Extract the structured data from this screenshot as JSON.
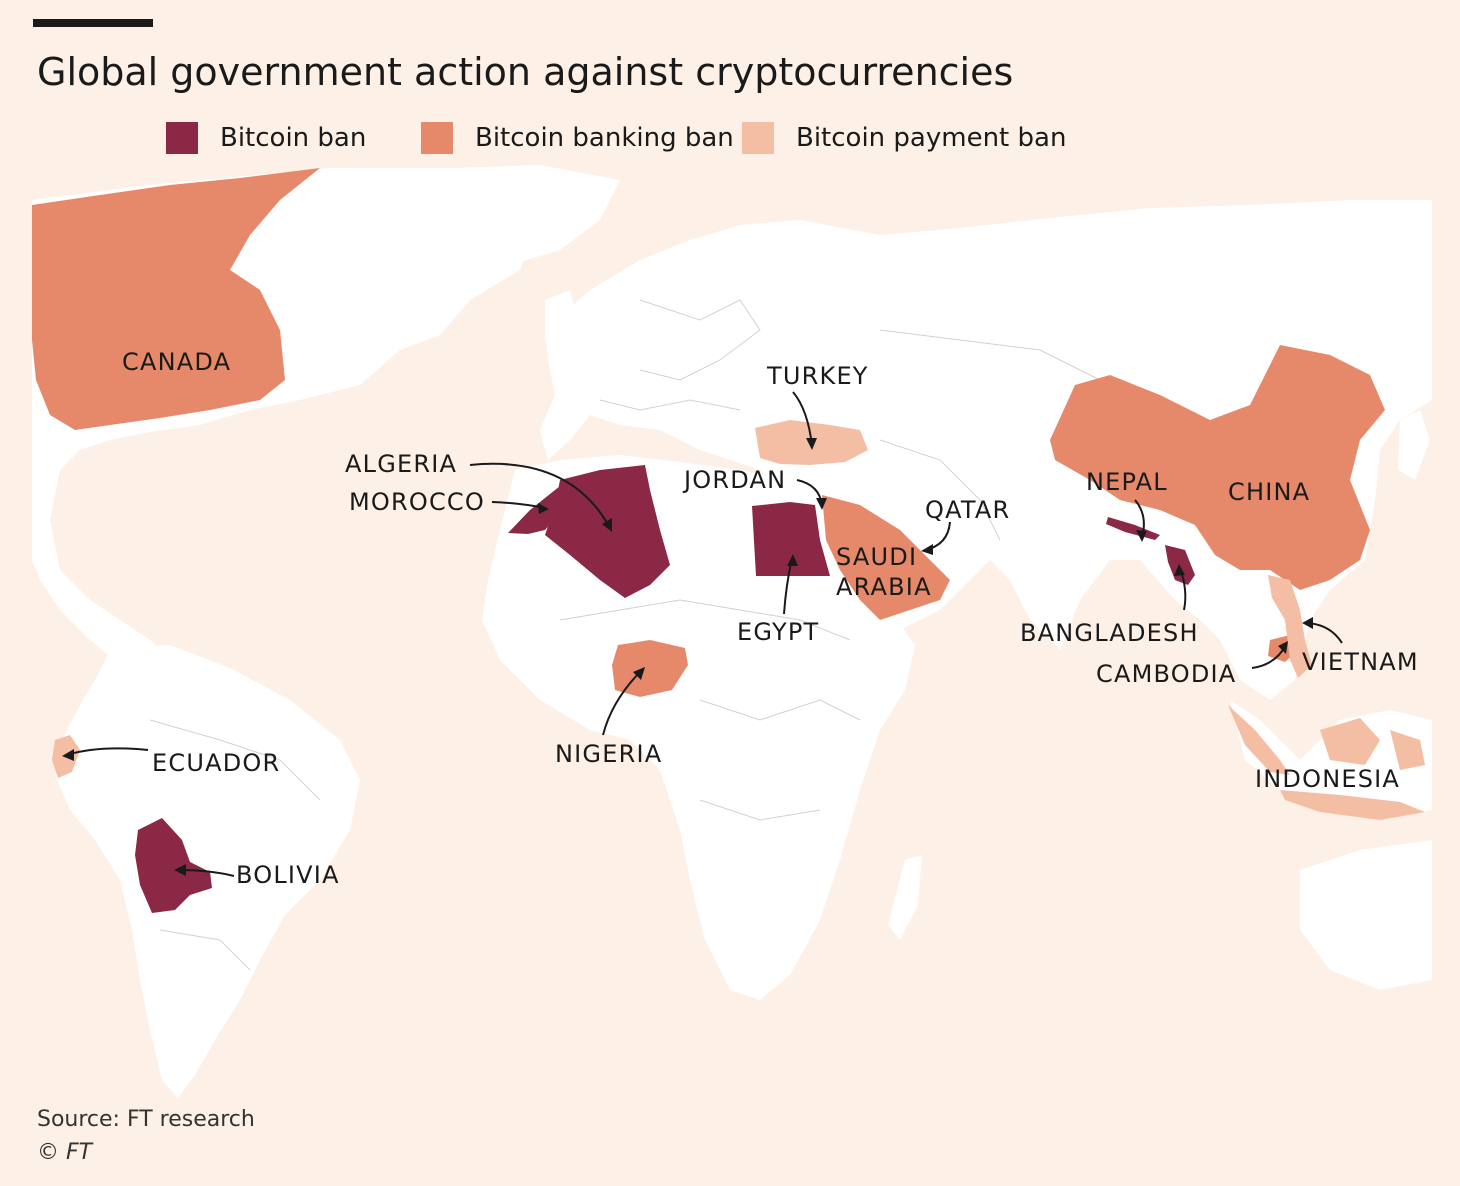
{
  "title": "Global government action against cryptocurrencies",
  "legend": [
    {
      "label": "Bitcoin ban",
      "color": "#8b2846"
    },
    {
      "label": "Bitcoin banking ban",
      "color": "#e5896a"
    },
    {
      "label": "Bitcoin payment ban",
      "color": "#f3bea4"
    }
  ],
  "countries": {
    "canada": "CANADA",
    "turkey": "TURKEY",
    "algeria": "ALGERIA",
    "morocco": "MOROCCO",
    "jordan": "JORDAN",
    "qatar": "QATAR",
    "nepal": "NEPAL",
    "china": "CHINA",
    "saudi_arabia_1": "SAUDI",
    "saudi_arabia_2": "ARABIA",
    "egypt": "EGYPT",
    "bangladesh": "BANGLADESH",
    "cambodia": "CAMBODIA",
    "vietnam": "VIETNAM",
    "nigeria": "NIGERIA",
    "ecuador": "ECUADOR",
    "indonesia": "INDONESIA",
    "bolivia": "BOLIVIA"
  },
  "colors": {
    "background": "#fdf0e6",
    "land": "#ffffff",
    "ban": "#8b2846",
    "banking_ban": "#e5896a",
    "payment_ban": "#f3bea4"
  },
  "source": "Source: FT research",
  "credit": "© FT"
}
